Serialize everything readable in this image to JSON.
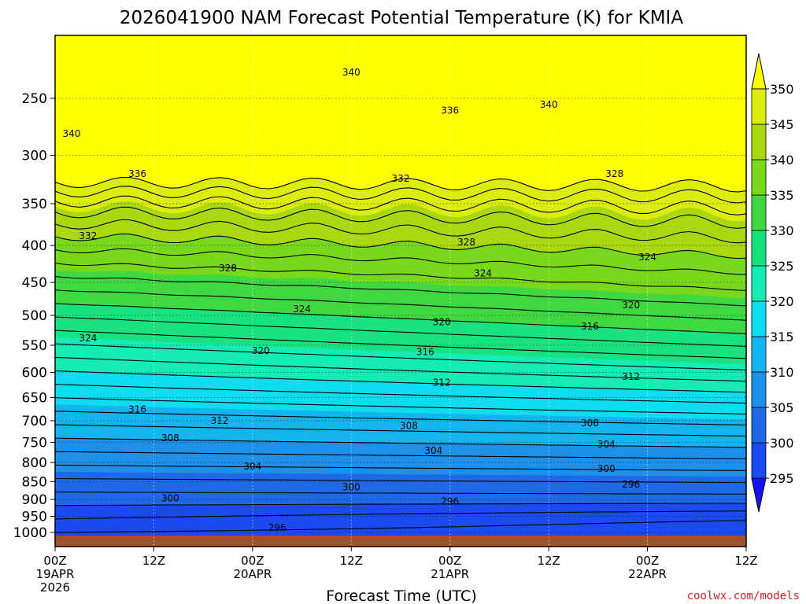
{
  "title": "2026041900 NAM Forecast Potential Temperature (K) for KMIA",
  "credit": "coolwx.com/models",
  "colors": {
    "ground": "#a0522d",
    "band_colors": [
      "#1414ee",
      "#1a4af0",
      "#1e6ae6",
      "#1e90e8",
      "#14b4ee",
      "#10dcf0",
      "#14ecb4",
      "#18e280",
      "#40d840",
      "#78d81c",
      "#aad810",
      "#dcec0c",
      "#ffff00"
    ]
  },
  "chart_data": {
    "type": "heatmap",
    "title": "2026041900 NAM Forecast Potential Temperature (K) for KMIA",
    "xlabel": "Forecast Time (UTC)",
    "ylabel": "",
    "x_range_hours": [
      0,
      84
    ],
    "x_ticks": [
      {
        "hour": 0,
        "label": "00Z",
        "date": "19APR",
        "year": "2026"
      },
      {
        "hour": 12,
        "label": "12Z"
      },
      {
        "hour": 24,
        "label": "00Z",
        "date": "20APR"
      },
      {
        "hour": 36,
        "label": "12Z"
      },
      {
        "hour": 48,
        "label": "00Z",
        "date": "21APR"
      },
      {
        "hour": 60,
        "label": "12Z"
      },
      {
        "hour": 72,
        "label": "00Z",
        "date": "22APR"
      },
      {
        "hour": 84,
        "label": "12Z"
      }
    ],
    "y_ticks": [
      "250",
      "300",
      "350",
      "400",
      "450",
      "500",
      "550",
      "600",
      "650",
      "700",
      "750",
      "800",
      "850",
      "900",
      "950",
      "1000"
    ],
    "colorbar": {
      "labels": [
        "295",
        "300",
        "305",
        "310",
        "315",
        "320",
        "325",
        "330",
        "335",
        "340",
        "345",
        "350"
      ],
      "bounds_k": [
        290,
        295,
        300,
        305,
        310,
        315,
        320,
        325,
        330,
        335,
        340,
        345,
        350,
        355
      ]
    },
    "contour_interval_k": 2,
    "contour_labels": [
      {
        "text": "340",
        "hour": 36,
        "p": 230
      },
      {
        "text": "340",
        "hour": 60,
        "p": 255
      },
      {
        "text": "340",
        "hour": 2,
        "p": 280
      },
      {
        "text": "336",
        "hour": 48,
        "p": 260
      },
      {
        "text": "336",
        "hour": 10,
        "p": 318
      },
      {
        "text": "332",
        "hour": 42,
        "p": 323
      },
      {
        "text": "332",
        "hour": 4,
        "p": 388
      },
      {
        "text": "328",
        "hour": 68,
        "p": 318
      },
      {
        "text": "328",
        "hour": 50,
        "p": 396
      },
      {
        "text": "328",
        "hour": 21,
        "p": 430
      },
      {
        "text": "324",
        "hour": 52,
        "p": 437
      },
      {
        "text": "324",
        "hour": 72,
        "p": 415
      },
      {
        "text": "324",
        "hour": 30,
        "p": 490
      },
      {
        "text": "324",
        "hour": 4,
        "p": 538
      },
      {
        "text": "320",
        "hour": 70,
        "p": 484
      },
      {
        "text": "320",
        "hour": 47,
        "p": 511
      },
      {
        "text": "320",
        "hour": 25,
        "p": 560
      },
      {
        "text": "316",
        "hour": 65,
        "p": 518
      },
      {
        "text": "316",
        "hour": 45,
        "p": 562
      },
      {
        "text": "316",
        "hour": 10,
        "p": 675
      },
      {
        "text": "312",
        "hour": 70,
        "p": 608
      },
      {
        "text": "312",
        "hour": 47,
        "p": 620
      },
      {
        "text": "312",
        "hour": 20,
        "p": 700
      },
      {
        "text": "308",
        "hour": 65,
        "p": 705
      },
      {
        "text": "308",
        "hour": 43,
        "p": 712
      },
      {
        "text": "308",
        "hour": 14,
        "p": 740
      },
      {
        "text": "304",
        "hour": 67,
        "p": 755
      },
      {
        "text": "304",
        "hour": 46,
        "p": 770
      },
      {
        "text": "304",
        "hour": 24,
        "p": 810
      },
      {
        "text": "300",
        "hour": 67,
        "p": 816
      },
      {
        "text": "300",
        "hour": 36,
        "p": 865
      },
      {
        "text": "300",
        "hour": 14,
        "p": 897
      },
      {
        "text": "296",
        "hour": 70,
        "p": 858
      },
      {
        "text": "296",
        "hour": 48,
        "p": 905
      },
      {
        "text": "296",
        "hour": 27,
        "p": 985
      }
    ]
  }
}
